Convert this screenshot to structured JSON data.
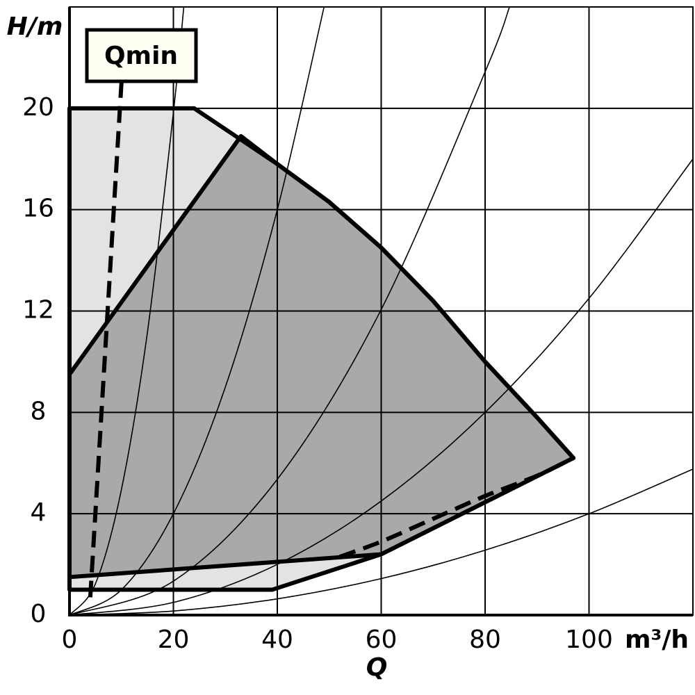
{
  "chart_data": {
    "type": "line",
    "x_label": "Q",
    "x_unit": "m³/h",
    "y_label": "H/m",
    "annotation": "Qmin",
    "xlim": [
      0,
      120
    ],
    "ylim": [
      0,
      24
    ],
    "xticks": [
      0,
      20,
      40,
      60,
      80,
      100
    ],
    "yticks": [
      0,
      4,
      8,
      12,
      16,
      20
    ],
    "grid": true,
    "series": [
      {
        "style": "region",
        "color": "#e3e3e3",
        "x": [
          0,
          24,
          32,
          40,
          50,
          60,
          70,
          80,
          90,
          97,
          60,
          39,
          0
        ],
        "values": [
          20,
          20,
          18.9,
          17.8,
          16.3,
          14.5,
          12.4,
          10,
          7.8,
          6.2,
          2.4,
          1.0,
          1.0
        ]
      },
      {
        "style": "region",
        "color": "#a9a9a9",
        "x": [
          0,
          33,
          40,
          50,
          60,
          70,
          80,
          90,
          97,
          60,
          0
        ],
        "values": [
          9.5,
          18.9,
          17.8,
          16.3,
          14.5,
          12.4,
          10,
          7.8,
          6.2,
          2.4,
          1.5
        ]
      },
      {
        "style": "thin",
        "color": "#000000",
        "x": [
          0,
          5,
          10,
          15,
          20,
          22
        ],
        "values": [
          0,
          1.24,
          4.96,
          11.16,
          19.84,
          24.0
        ]
      },
      {
        "style": "thin",
        "color": "#000000",
        "x": [
          0,
          10,
          20,
          30,
          40,
          49
        ],
        "values": [
          0,
          1,
          4,
          9,
          16,
          24.0
        ]
      },
      {
        "style": "thin",
        "color": "#000000",
        "x": [
          0,
          20,
          40,
          60,
          80,
          84.7
        ],
        "values": [
          0,
          1.34,
          5.36,
          12.06,
          21.44,
          24.0
        ]
      },
      {
        "style": "thin",
        "color": "#000000",
        "x": [
          0,
          20,
          40,
          60,
          80,
          100,
          120
        ],
        "values": [
          0,
          0.5,
          2,
          4.5,
          8,
          12.5,
          18
        ]
      },
      {
        "style": "thin",
        "color": "#000000",
        "x": [
          0,
          20,
          40,
          60,
          80,
          100,
          120
        ],
        "values": [
          0,
          0.16,
          0.64,
          1.44,
          2.56,
          4,
          5.76
        ]
      },
      {
        "style": "dashed",
        "color": "#000000",
        "x": [
          52,
          60,
          70,
          80,
          90,
          97
        ],
        "values": [
          2.3,
          2.9,
          3.8,
          4.7,
          5.5,
          6.2
        ]
      },
      {
        "style": "dashed",
        "color": "#000000",
        "x": [
          4,
          10
        ],
        "values": [
          0.7,
          21
        ]
      }
    ]
  }
}
